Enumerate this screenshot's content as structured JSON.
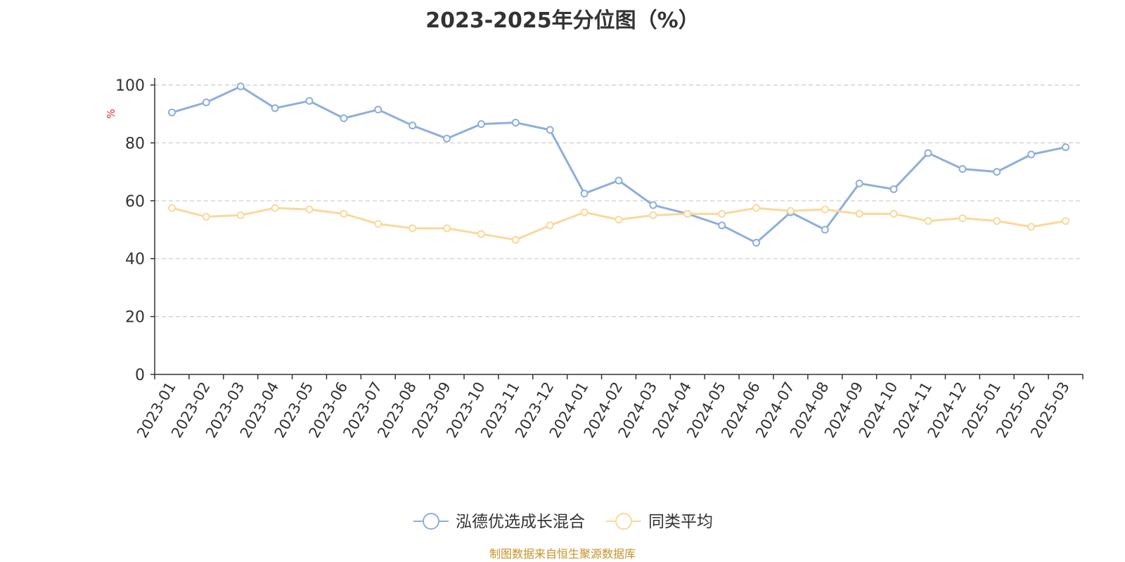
{
  "chart_data": {
    "type": "line",
    "title": "2023-2025年分位图（%）",
    "ylabel": "%",
    "xlabel": "",
    "ylim": [
      0,
      100
    ],
    "yticks": [
      0,
      20,
      40,
      60,
      80,
      100
    ],
    "grid": true,
    "legend_position": "bottom",
    "categories": [
      "2023-01",
      "2023-02",
      "2023-03",
      "2023-04",
      "2023-05",
      "2023-06",
      "2023-07",
      "2023-08",
      "2023-09",
      "2023-10",
      "2023-11",
      "2023-12",
      "2024-01",
      "2024-02",
      "2024-03",
      "2024-04",
      "2024-05",
      "2024-06",
      "2024-07",
      "2024-08",
      "2024-09",
      "2024-10",
      "2024-11",
      "2024-12",
      "2025-01",
      "2025-02",
      "2025-03"
    ],
    "series": [
      {
        "name": "泓德优选成长混合",
        "color": "#8eaedc",
        "values": [
          90.5,
          94.0,
          99.5,
          92.0,
          94.5,
          88.5,
          91.5,
          86.0,
          81.5,
          86.5,
          87.0,
          84.5,
          62.5,
          67.0,
          58.5,
          55.5,
          51.5,
          45.5,
          56.0,
          50.0,
          66.0,
          64.0,
          76.5,
          71.0,
          70.0,
          76.0,
          78.5
        ]
      },
      {
        "name": "同类平均",
        "color": "#fbd89a",
        "values": [
          57.5,
          54.5,
          55.0,
          57.5,
          57.0,
          55.5,
          52.0,
          50.5,
          50.5,
          48.5,
          46.5,
          51.5,
          56.0,
          53.5,
          55.0,
          55.5,
          55.5,
          57.5,
          56.5,
          57.0,
          55.5,
          55.5,
          53.0,
          54.0,
          53.0,
          51.0,
          53.0
        ]
      }
    ]
  },
  "source_text": "制图数据来自恒生聚源数据库",
  "colors": {
    "axis": "#333333",
    "grid": "#cccccc",
    "ylabel": "#e03030",
    "source": "#c8922a"
  }
}
